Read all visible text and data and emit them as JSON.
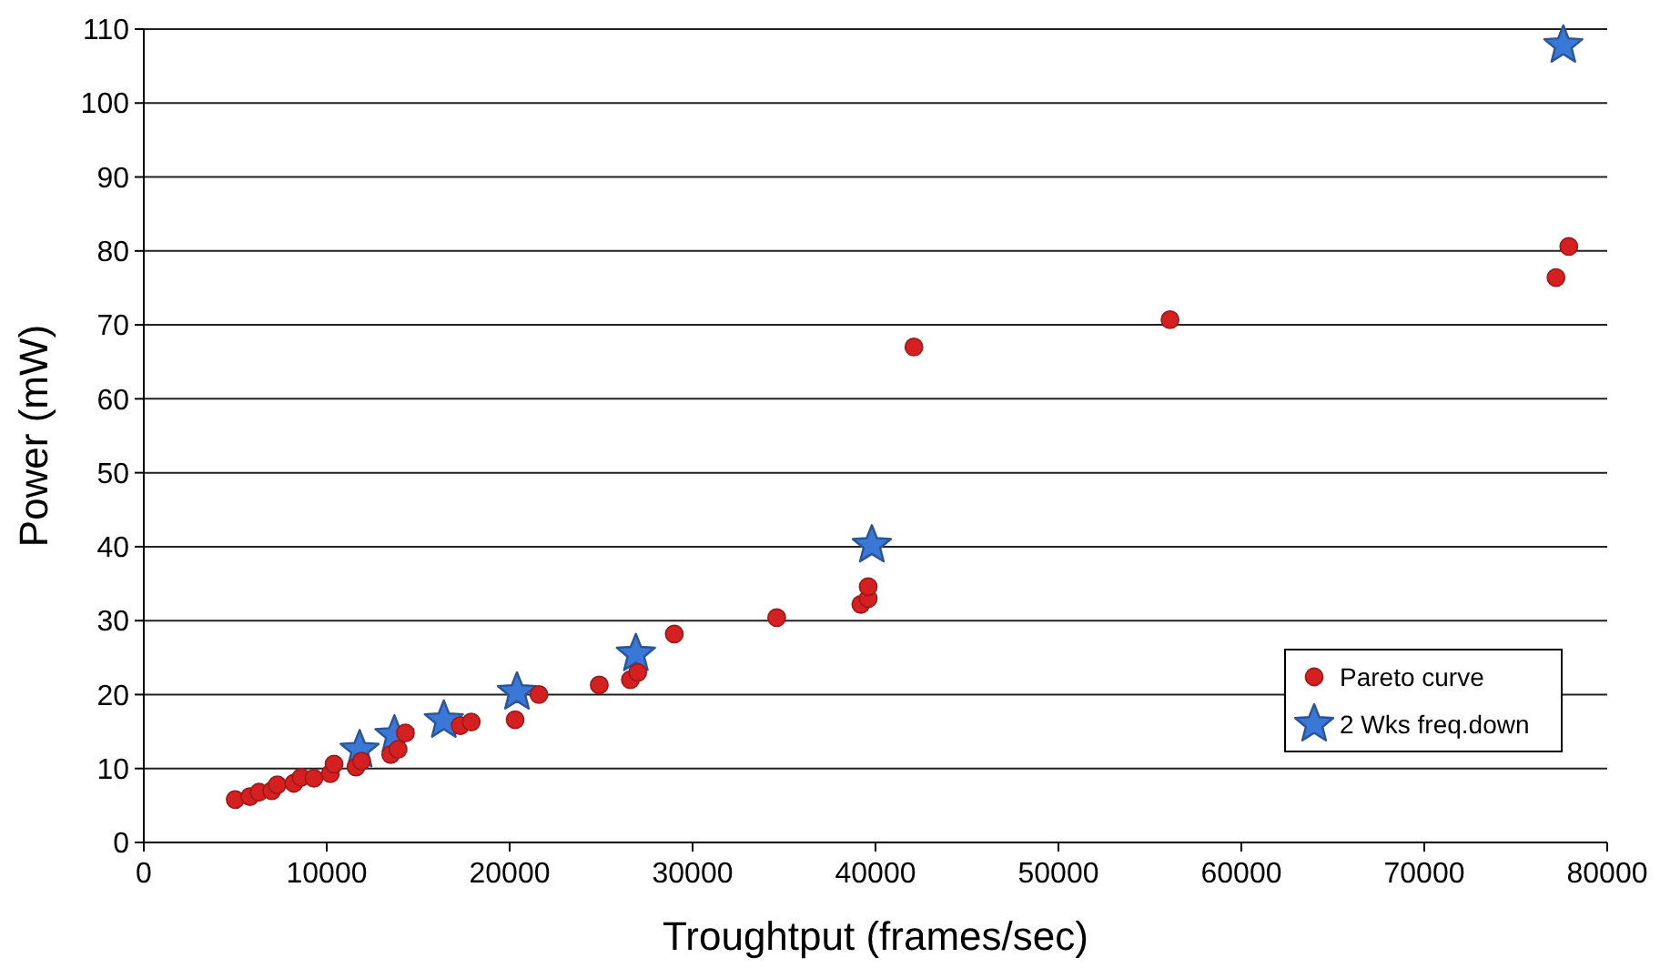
{
  "chart_data": {
    "type": "scatter",
    "xlabel": "Troughtput (frames/sec)",
    "ylabel": "Power (mW)",
    "xlim": [
      0,
      80000
    ],
    "xticks": [
      0,
      10000,
      20000,
      30000,
      40000,
      50000,
      60000,
      70000,
      80000
    ],
    "ylim": [
      0,
      110
    ],
    "yticks": [
      0,
      10,
      20,
      30,
      40,
      50,
      60,
      70,
      80,
      90,
      100,
      110
    ],
    "grid": "y",
    "legend": "bottom right",
    "series": [
      {
        "name": "Pareto curve",
        "color": "#d42020",
        "marker": "circle",
        "x": [
          5000,
          5800,
          6300,
          7000,
          7300,
          8200,
          8600,
          9300,
          10200,
          10400,
          11600,
          11900,
          13500,
          13900,
          14300,
          17300,
          17900,
          20300,
          21600,
          24900,
          26600,
          27000,
          29000,
          34600,
          39200,
          39600,
          39600,
          42100,
          56100,
          77200,
          77900
        ],
        "values": [
          5.8,
          6.2,
          6.8,
          7,
          7.8,
          8,
          8.8,
          8.7,
          9.3,
          10.6,
          10.2,
          11,
          11.9,
          12.6,
          14.8,
          15.8,
          16.3,
          16.6,
          20,
          21.3,
          22,
          23,
          28.2,
          30.4,
          32.2,
          33,
          34.6,
          67,
          70.7,
          76.4,
          80.6
        ]
      },
      {
        "name": "2 Wks freq.down",
        "color": "#3a78d8",
        "marker": "star",
        "x": [
          11800,
          13700,
          16400,
          20400,
          26900,
          39800,
          77600
        ],
        "values": [
          12.5,
          14.5,
          16.5,
          20.3,
          25.5,
          40.2,
          107.8
        ]
      }
    ]
  }
}
